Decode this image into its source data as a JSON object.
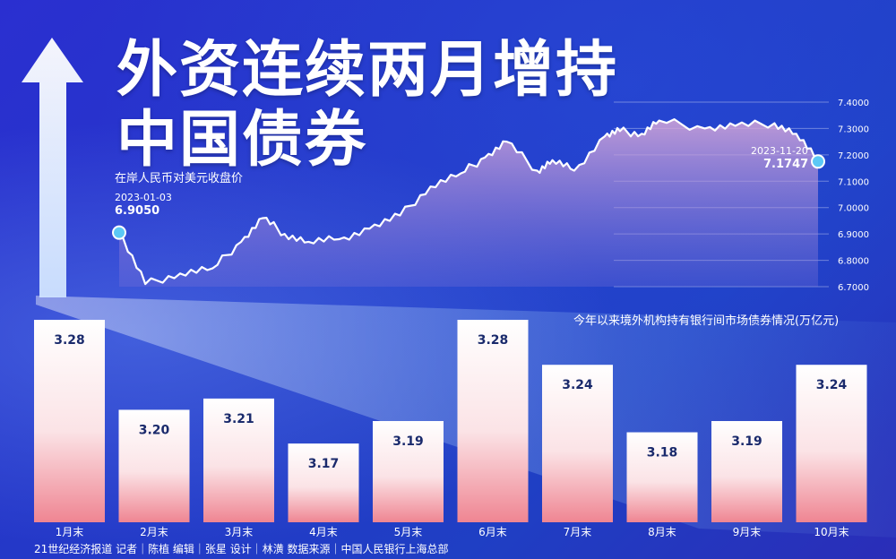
{
  "headline": {
    "line1": "外资连续两月增持",
    "line2": "中国债券"
  },
  "line_chart_label": "在岸人民币对美元收盘价",
  "start_point": {
    "date": "2023-01-03",
    "value": "6.9050"
  },
  "end_point": {
    "date": "2023-11-20",
    "value": "7.1747"
  },
  "bar_chart_label": "今年以来境外机构持有银行间市场债券情况(万亿元)",
  "footer": "21世纪经济报道  记者｜陈植    编辑｜张星    设计｜林潢    数据来源｜中国人民银行上海总部",
  "colors": {
    "background": "#2438c8",
    "line": "#ffffff",
    "area_top": "#c8a3d6",
    "bar_top": "#ffffff",
    "bar_bottom": "#f08a95",
    "point_marker": "#5cc8f5"
  },
  "chart_data": [
    {
      "type": "line",
      "title": "在岸人民币对美元收盘价",
      "x": [
        "2023-01-03",
        "2023-01-15",
        "2023-01-31",
        "2023-02-15",
        "2023-02-28",
        "2023-03-10",
        "2023-03-20",
        "2023-03-31",
        "2023-04-14",
        "2023-04-28",
        "2023-05-12",
        "2023-05-26",
        "2023-06-09",
        "2023-06-20",
        "2023-06-30",
        "2023-07-14",
        "2023-07-21",
        "2023-07-31",
        "2023-08-14",
        "2023-08-21",
        "2023-08-31",
        "2023-09-08",
        "2023-09-29",
        "2023-10-13",
        "2023-10-31",
        "2023-11-10",
        "2023-11-20"
      ],
      "values": [
        6.905,
        6.71,
        6.75,
        6.77,
        6.87,
        6.96,
        6.9,
        6.87,
        6.88,
        6.92,
        6.97,
        7.08,
        7.13,
        7.19,
        7.25,
        7.14,
        7.18,
        7.14,
        7.27,
        7.29,
        7.28,
        7.33,
        7.3,
        7.31,
        7.32,
        7.28,
        7.1747
      ],
      "yticks": [
        "6.7000",
        "6.8000",
        "6.9000",
        "7.0000",
        "7.1000",
        "7.2000",
        "7.3000",
        "7.4000"
      ],
      "ylim": [
        6.7,
        7.4
      ]
    },
    {
      "type": "bar",
      "title": "今年以来境外机构持有银行间市场债券情况(万亿元)",
      "categories": [
        "1月末",
        "2月末",
        "3月末",
        "4月末",
        "5月末",
        "6月末",
        "7月末",
        "8月末",
        "9月末",
        "10月末"
      ],
      "values": [
        3.28,
        3.2,
        3.21,
        3.17,
        3.19,
        3.28,
        3.24,
        3.18,
        3.19,
        3.24
      ],
      "value_labels": [
        "3.28",
        "3.20",
        "3.21",
        "3.17",
        "3.19",
        "3.28",
        "3.24",
        "3.18",
        "3.19",
        "3.24"
      ],
      "ylim": [
        3.1,
        3.28
      ]
    }
  ]
}
